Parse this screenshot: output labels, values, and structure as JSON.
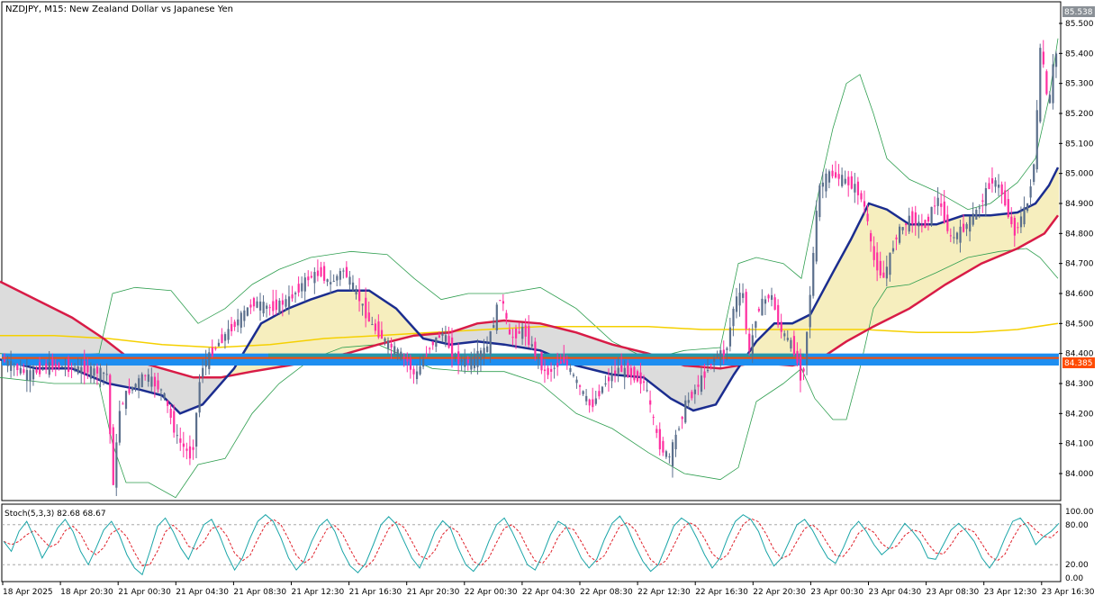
{
  "header": {
    "title": "NZDJPY, M15:  New Zealand Dollar vs Japanese Yen"
  },
  "price_badges": {
    "current": "85.538",
    "level": "84.385"
  },
  "colors": {
    "bull": "#5b6f8c",
    "bear": "#ff2fa0",
    "bb": "#2e9e4f",
    "ma_fast": "#1b2d8f",
    "ma_mid": "#d81b46",
    "ma_slow": "#f5d000",
    "cloud_up": "#f6eebe",
    "cloud_dn": "#dcdcdc",
    "level_line": "#ff4b00",
    "zone": "#1e8ef0",
    "stoch_main": "#1aa5a8",
    "stoch_signal": "#e0202a"
  },
  "chart_data": [
    {
      "type": "candlestick",
      "title": "NZDJPY, M15:  New Zealand Dollar vs Japanese Yen",
      "symbol": "NZDJPY",
      "timeframe": "M15",
      "y_ticks": [
        "85.500",
        "85.400",
        "85.300",
        "85.200",
        "85.100",
        "85.000",
        "84.900",
        "84.800",
        "84.700",
        "84.600",
        "84.500",
        "84.400",
        "84.300",
        "84.200",
        "84.100",
        "84.000"
      ],
      "ylim": [
        83.9,
        85.54
      ],
      "x_ticks": [
        "18 Apr 2025",
        "18 Apr 20:30",
        "21 Apr 00:30",
        "21 Apr 04:30",
        "21 Apr 08:30",
        "21 Apr 12:30",
        "21 Apr 16:30",
        "21 Apr 20:30",
        "22 Apr 00:30",
        "22 Apr 04:30",
        "22 Apr 08:30",
        "22 Apr 12:30",
        "22 Apr 16:30",
        "22 Apr 20:30",
        "23 Apr 00:30",
        "23 Apr 04:30",
        "23 Apr 08:30",
        "23 Apr 12:30",
        "23 Apr 16:30"
      ],
      "price_path": [
        [
          0,
          84.38
        ],
        [
          30,
          84.33
        ],
        [
          55,
          84.36
        ],
        [
          82,
          84.35
        ],
        [
          108,
          84.34
        ],
        [
          118,
          84.33
        ],
        [
          124,
          83.95
        ],
        [
          132,
          84.22
        ],
        [
          140,
          84.27
        ],
        [
          160,
          84.33
        ],
        [
          180,
          84.27
        ],
        [
          195,
          84.12
        ],
        [
          212,
          84.05
        ],
        [
          222,
          84.35
        ],
        [
          240,
          84.43
        ],
        [
          260,
          84.5
        ],
        [
          280,
          84.57
        ],
        [
          300,
          84.55
        ],
        [
          320,
          84.58
        ],
        [
          340,
          84.65
        ],
        [
          355,
          84.67
        ],
        [
          365,
          84.63
        ],
        [
          380,
          84.68
        ],
        [
          395,
          84.6
        ],
        [
          410,
          84.5
        ],
        [
          430,
          84.43
        ],
        [
          450,
          84.38
        ],
        [
          460,
          84.32
        ],
        [
          475,
          84.42
        ],
        [
          490,
          84.47
        ],
        [
          505,
          84.38
        ],
        [
          520,
          84.37
        ],
        [
          540,
          84.42
        ],
        [
          555,
          84.6
        ],
        [
          565,
          84.45
        ],
        [
          580,
          84.48
        ],
        [
          590,
          84.42
        ],
        [
          605,
          84.33
        ],
        [
          625,
          84.38
        ],
        [
          640,
          84.3
        ],
        [
          655,
          84.22
        ],
        [
          670,
          84.3
        ],
        [
          685,
          84.35
        ],
        [
          700,
          84.33
        ],
        [
          715,
          84.3
        ],
        [
          730,
          84.1
        ],
        [
          742,
          84.05
        ],
        [
          760,
          84.23
        ],
        [
          775,
          84.3
        ],
        [
          795,
          84.4
        ],
        [
          805,
          84.4
        ],
        [
          815,
          84.58
        ],
        [
          825,
          84.6
        ],
        [
          830,
          84.38
        ],
        [
          840,
          84.55
        ],
        [
          855,
          84.6
        ],
        [
          865,
          84.48
        ],
        [
          880,
          84.42
        ],
        [
          890,
          84.3
        ],
        [
          900,
          84.65
        ],
        [
          908,
          84.95
        ],
        [
          920,
          85.0
        ],
        [
          935,
          84.98
        ],
        [
          950,
          84.95
        ],
        [
          960,
          84.88
        ],
        [
          968,
          84.72
        ],
        [
          980,
          84.65
        ],
        [
          995,
          84.8
        ],
        [
          1010,
          84.85
        ],
        [
          1025,
          84.82
        ],
        [
          1040,
          84.92
        ],
        [
          1055,
          84.78
        ],
        [
          1070,
          84.82
        ],
        [
          1085,
          84.88
        ],
        [
          1100,
          84.98
        ],
        [
          1110,
          84.95
        ],
        [
          1125,
          84.8
        ],
        [
          1140,
          84.9
        ],
        [
          1148,
          85.05
        ],
        [
          1155,
          85.45
        ],
        [
          1163,
          85.2
        ],
        [
          1170,
          85.4
        ]
      ],
      "ma_fast": [
        [
          0,
          84.38
        ],
        [
          40,
          84.35
        ],
        [
          80,
          84.35
        ],
        [
          120,
          84.3
        ],
        [
          155,
          84.28
        ],
        [
          180,
          84.26
        ],
        [
          200,
          84.2
        ],
        [
          225,
          84.23
        ],
        [
          260,
          84.35
        ],
        [
          290,
          84.5
        ],
        [
          320,
          84.55
        ],
        [
          345,
          84.58
        ],
        [
          375,
          84.61
        ],
        [
          410,
          84.61
        ],
        [
          440,
          84.55
        ],
        [
          470,
          84.45
        ],
        [
          500,
          84.43
        ],
        [
          530,
          84.44
        ],
        [
          560,
          84.43
        ],
        [
          600,
          84.41
        ],
        [
          640,
          84.36
        ],
        [
          680,
          84.33
        ],
        [
          715,
          84.32
        ],
        [
          745,
          84.25
        ],
        [
          770,
          84.21
        ],
        [
          795,
          84.23
        ],
        [
          815,
          84.33
        ],
        [
          840,
          84.44
        ],
        [
          860,
          84.5
        ],
        [
          880,
          84.5
        ],
        [
          900,
          84.53
        ],
        [
          925,
          84.67
        ],
        [
          945,
          84.78
        ],
        [
          965,
          84.9
        ],
        [
          985,
          84.88
        ],
        [
          1010,
          84.83
        ],
        [
          1040,
          84.83
        ],
        [
          1070,
          84.86
        ],
        [
          1100,
          84.86
        ],
        [
          1130,
          84.87
        ],
        [
          1150,
          84.9
        ],
        [
          1165,
          84.96
        ],
        [
          1175,
          85.02
        ]
      ],
      "ma_mid": [
        [
          0,
          84.64
        ],
        [
          40,
          84.58
        ],
        [
          80,
          84.52
        ],
        [
          115,
          84.45
        ],
        [
          145,
          84.38
        ],
        [
          180,
          84.35
        ],
        [
          215,
          84.32
        ],
        [
          245,
          84.32
        ],
        [
          280,
          84.34
        ],
        [
          320,
          84.36
        ],
        [
          355,
          84.38
        ],
        [
          385,
          84.4
        ],
        [
          420,
          84.43
        ],
        [
          460,
          84.46
        ],
        [
          500,
          84.47
        ],
        [
          530,
          84.5
        ],
        [
          560,
          84.51
        ],
        [
          600,
          84.5
        ],
        [
          640,
          84.47
        ],
        [
          680,
          84.43
        ],
        [
          720,
          84.4
        ],
        [
          760,
          84.36
        ],
        [
          800,
          84.35
        ],
        [
          840,
          84.37
        ],
        [
          880,
          84.36
        ],
        [
          910,
          84.38
        ],
        [
          940,
          84.44
        ],
        [
          970,
          84.49
        ],
        [
          1010,
          84.55
        ],
        [
          1050,
          84.63
        ],
        [
          1090,
          84.7
        ],
        [
          1130,
          84.75
        ],
        [
          1160,
          84.8
        ],
        [
          1175,
          84.86
        ]
      ],
      "ma_slow": [
        [
          0,
          84.46
        ],
        [
          60,
          84.46
        ],
        [
          120,
          84.45
        ],
        [
          180,
          84.43
        ],
        [
          240,
          84.42
        ],
        [
          300,
          84.43
        ],
        [
          360,
          84.45
        ],
        [
          420,
          84.46
        ],
        [
          480,
          84.47
        ],
        [
          540,
          84.48
        ],
        [
          600,
          84.49
        ],
        [
          660,
          84.49
        ],
        [
          720,
          84.49
        ],
        [
          780,
          84.48
        ],
        [
          840,
          84.48
        ],
        [
          900,
          84.48
        ],
        [
          960,
          84.48
        ],
        [
          1020,
          84.47
        ],
        [
          1080,
          84.47
        ],
        [
          1130,
          84.48
        ],
        [
          1175,
          84.5
        ]
      ],
      "bb_upper": [
        [
          0,
          84.4
        ],
        [
          60,
          84.39
        ],
        [
          110,
          84.4
        ],
        [
          125,
          84.6
        ],
        [
          150,
          84.62
        ],
        [
          190,
          84.61
        ],
        [
          220,
          84.5
        ],
        [
          250,
          84.55
        ],
        [
          280,
          84.63
        ],
        [
          310,
          84.68
        ],
        [
          345,
          84.72
        ],
        [
          390,
          84.74
        ],
        [
          430,
          84.73
        ],
        [
          460,
          84.65
        ],
        [
          490,
          84.58
        ],
        [
          520,
          84.6
        ],
        [
          560,
          84.6
        ],
        [
          600,
          84.62
        ],
        [
          640,
          84.55
        ],
        [
          680,
          84.44
        ],
        [
          720,
          84.38
        ],
        [
          760,
          84.41
        ],
        [
          800,
          84.42
        ],
        [
          820,
          84.7
        ],
        [
          840,
          84.72
        ],
        [
          870,
          84.7
        ],
        [
          890,
          84.65
        ],
        [
          910,
          84.95
        ],
        [
          925,
          85.15
        ],
        [
          940,
          85.3
        ],
        [
          955,
          85.33
        ],
        [
          970,
          85.2
        ],
        [
          985,
          85.05
        ],
        [
          1010,
          84.98
        ],
        [
          1040,
          84.94
        ],
        [
          1075,
          84.88
        ],
        [
          1100,
          84.9
        ],
        [
          1130,
          84.97
        ],
        [
          1150,
          85.05
        ],
        [
          1165,
          85.25
        ],
        [
          1175,
          85.45
        ]
      ],
      "bb_lower": [
        [
          0,
          84.32
        ],
        [
          60,
          84.3
        ],
        [
          110,
          84.3
        ],
        [
          125,
          84.1
        ],
        [
          140,
          83.97
        ],
        [
          165,
          83.97
        ],
        [
          195,
          83.92
        ],
        [
          220,
          84.03
        ],
        [
          250,
          84.05
        ],
        [
          280,
          84.2
        ],
        [
          310,
          84.3
        ],
        [
          345,
          84.38
        ],
        [
          380,
          84.42
        ],
        [
          420,
          84.43
        ],
        [
          450,
          84.39
        ],
        [
          480,
          84.35
        ],
        [
          520,
          84.34
        ],
        [
          560,
          84.34
        ],
        [
          600,
          84.3
        ],
        [
          640,
          84.2
        ],
        [
          680,
          84.15
        ],
        [
          720,
          84.07
        ],
        [
          760,
          84.0
        ],
        [
          800,
          83.98
        ],
        [
          820,
          84.02
        ],
        [
          840,
          84.24
        ],
        [
          870,
          84.3
        ],
        [
          890,
          84.35
        ],
        [
          905,
          84.25
        ],
        [
          925,
          84.18
        ],
        [
          940,
          84.18
        ],
        [
          955,
          84.35
        ],
        [
          970,
          84.55
        ],
        [
          985,
          84.62
        ],
        [
          1010,
          84.63
        ],
        [
          1040,
          84.67
        ],
        [
          1075,
          84.72
        ],
        [
          1110,
          84.74
        ],
        [
          1140,
          84.75
        ],
        [
          1155,
          84.72
        ],
        [
          1175,
          84.65
        ]
      ],
      "level_line": 84.385,
      "zone": [
        84.36,
        84.4
      ]
    },
    {
      "type": "line",
      "title": "Stoch(5,3,3) 82.68 68.67",
      "indicator": "Stochastic",
      "params": [
        5,
        3,
        3
      ],
      "main_value": 82.68,
      "signal_value": 68.67,
      "ylim": [
        0,
        100
      ],
      "y_ticks": [
        "100.00",
        "80.00",
        "20.00",
        "0.00"
      ],
      "levels": [
        80,
        20
      ],
      "series": [
        {
          "name": "main",
          "values": [
            55,
            40,
            70,
            85,
            60,
            30,
            50,
            75,
            88,
            70,
            40,
            20,
            45,
            72,
            85,
            65,
            35,
            15,
            5,
            40,
            78,
            90,
            70,
            45,
            28,
            55,
            80,
            88,
            65,
            35,
            12,
            30,
            60,
            85,
            95,
            85,
            60,
            30,
            12,
            25,
            55,
            78,
            88,
            70,
            40,
            18,
            8,
            22,
            50,
            80,
            92,
            80,
            55,
            30,
            15,
            40,
            70,
            86,
            75,
            45,
            20,
            10,
            25,
            55,
            80,
            90,
            70,
            45,
            20,
            12,
            35,
            65,
            85,
            78,
            55,
            30,
            15,
            28,
            58,
            82,
            93,
            75,
            48,
            25,
            10,
            20,
            48,
            78,
            90,
            82,
            60,
            35,
            15,
            30,
            60,
            85,
            95,
            88,
            70,
            40,
            18,
            30,
            55,
            80,
            88,
            72,
            50,
            30,
            22,
            45,
            72,
            85,
            70,
            50,
            35,
            45,
            65,
            82,
            70,
            55,
            30,
            28,
            50,
            72,
            82,
            70,
            55,
            30,
            15,
            32,
            60,
            85,
            90,
            75,
            50,
            62,
            70,
            82
          ]
        }
      ]
    }
  ]
}
